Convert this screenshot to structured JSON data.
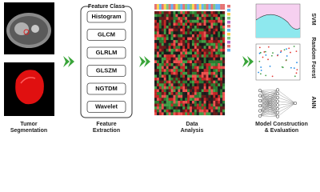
{
  "stages": [
    {
      "lines": [
        "Tumor",
        "Segmentation"
      ]
    },
    {
      "lines": [
        "Feature",
        "Extraction"
      ]
    },
    {
      "lines": [
        "Data",
        "Analysis"
      ]
    },
    {
      "lines": [
        "Model Construction",
        "& Evaluation"
      ]
    }
  ],
  "feature_class": {
    "title": "Feature Class",
    "items": [
      "Histogram",
      "GLCM",
      "GLRLM",
      "GLSZM",
      "NGTDM",
      "Wavelet"
    ]
  },
  "models": [
    "SVM",
    "Random Forest",
    "ANN"
  ]
}
